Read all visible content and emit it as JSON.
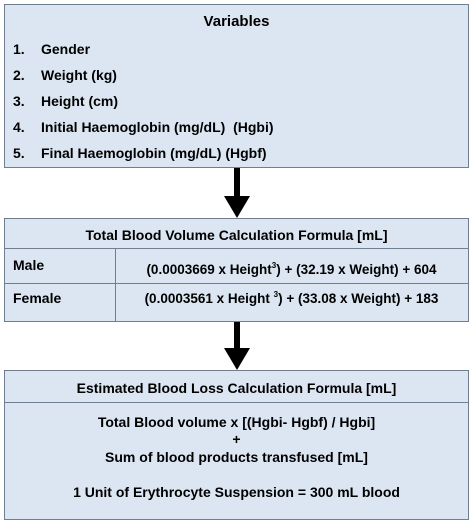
{
  "variables": {
    "title": "Variables",
    "items": [
      {
        "num": "1.",
        "label": "Gender"
      },
      {
        "num": "2.",
        "label": "Weight (kg)"
      },
      {
        "num": "3.",
        "label": "Height (cm)"
      },
      {
        "num": "4.",
        "label": "Initial Haemoglobin (mg/dL)  (Hgbi)"
      },
      {
        "num": "5.",
        "label": "Final Haemoglobin (mg/dL) (Hgbf)"
      }
    ]
  },
  "total_blood_volume": {
    "title": "Total Blood Volume Calculation Formula [mL]",
    "male_label": "Male",
    "male_formula_a": "(0.0003669 x Height",
    "male_formula_sup": "3",
    "male_formula_b": ") + (32.19 x Weight) + 604",
    "female_label": "Female",
    "female_formula_a": "(0.0003561 x Height ",
    "female_formula_sup": "3",
    "female_formula_b": ") + (33.08 x Weight) + 183"
  },
  "estimated_blood_loss": {
    "title": "Estimated Blood Loss Calculation Formula [mL]",
    "line1": "Total Blood volume x [(Hgbi- Hgbf) / Hgbi]",
    "plus": "+",
    "line2": "Sum of blood products transfused [mL]",
    "line3": "1 Unit of Erythrocyte Suspension = 300 mL blood"
  },
  "colors": {
    "box_fill": "#dce6f2",
    "box_border": "#6f7f90",
    "arrow": "#000000"
  }
}
